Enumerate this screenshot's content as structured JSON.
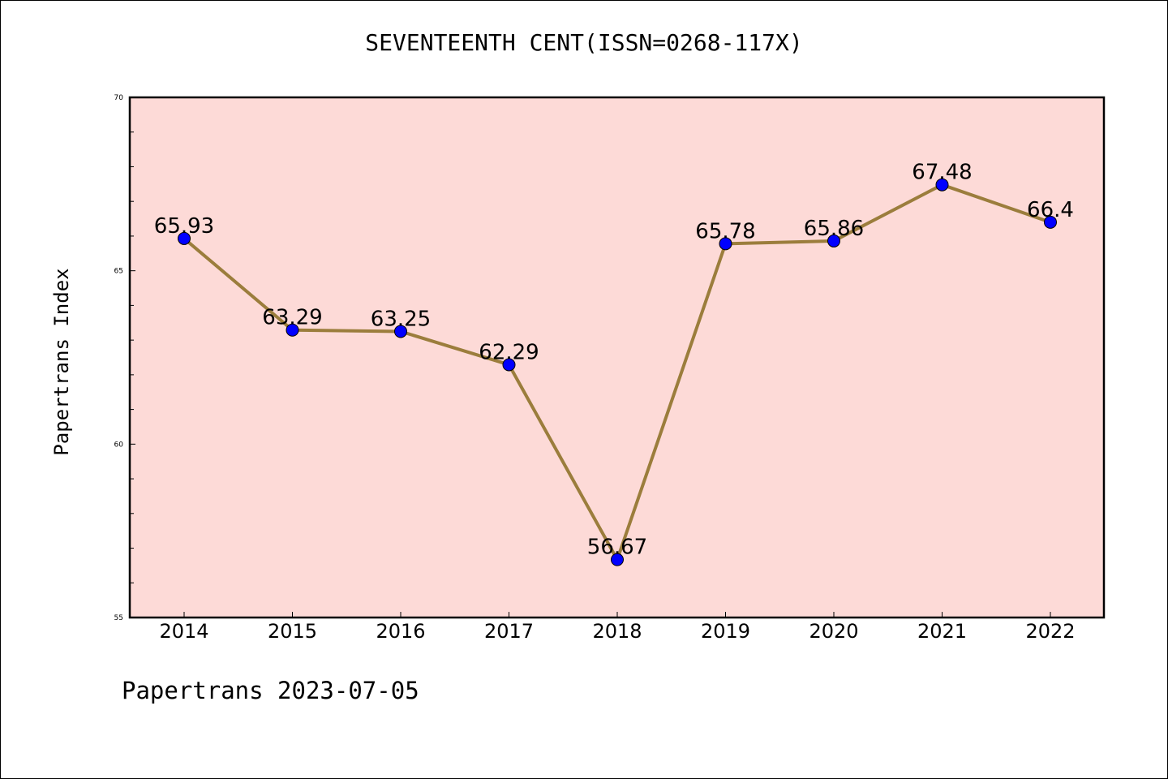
{
  "chart_data": {
    "type": "line",
    "title": "SEVENTEENTH CENT(ISSN=0268-117X)",
    "xlabel": "",
    "ylabel": "Papertrans Index",
    "categories": [
      "2014",
      "2015",
      "2016",
      "2017",
      "2018",
      "2019",
      "2020",
      "2021",
      "2022"
    ],
    "series": [
      {
        "values": [
          65.93,
          63.29,
          63.25,
          62.29,
          56.67,
          65.78,
          65.86,
          67.48,
          66.4
        ],
        "data_labels": [
          "65.93",
          "63.29",
          "63.25",
          "62.29",
          "56.67",
          "65.78",
          "65.86",
          "67.48",
          "66.4"
        ]
      }
    ],
    "ylim": [
      55,
      70
    ],
    "yticks": [
      55,
      60,
      65,
      70
    ],
    "grid": false,
    "colors": {
      "plot_background": "#fddad7",
      "line": "#9b7d3c",
      "marker": "#0000ff"
    }
  },
  "footer": {
    "text": "Papertrans 2023-07-05"
  }
}
